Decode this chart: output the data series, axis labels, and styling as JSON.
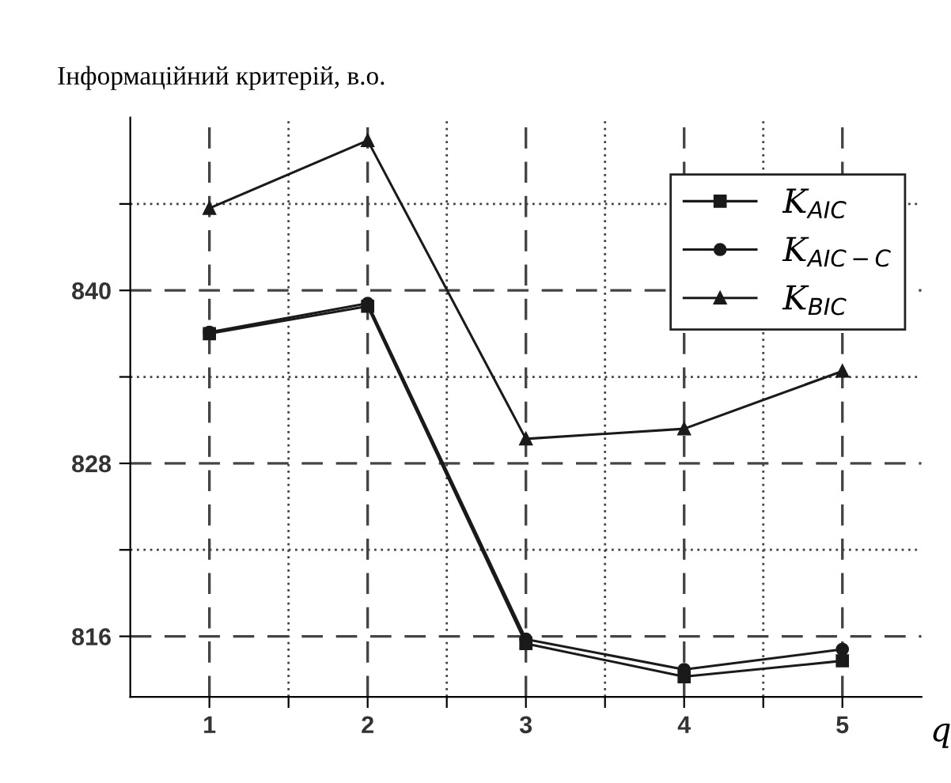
{
  "chart_data": {
    "type": "line",
    "ylabel": "Інформаційний критерій, в.о.",
    "xlabel": "q",
    "x": [
      1,
      2,
      3,
      4,
      5
    ],
    "series": [
      {
        "name": "K$_{AIC}$",
        "color": "#1a1a1a",
        "marker": "square",
        "values": [
          837.0,
          838.9,
          815.5,
          813.2,
          814.3
        ]
      },
      {
        "name": "K$_{AIC−C}$",
        "color": "#1a1a1a",
        "marker": "circle",
        "values": [
          837.1,
          839.1,
          815.8,
          813.7,
          815.1
        ]
      },
      {
        "name": "K$_{BIC}$",
        "color": "#1a1a1a",
        "marker": "triangle",
        "values": [
          845.7,
          850.4,
          829.7,
          830.4,
          834.4
        ]
      }
    ],
    "xlim": [
      0.5,
      5.5
    ],
    "ylim": [
      811.8,
      852
    ],
    "xticks": [
      1,
      {
        "value": 1.5,
        "label": null
      },
      2,
      {
        "value": 2.5,
        "label": null
      },
      3,
      {
        "value": 3.5,
        "label": null
      },
      4,
      {
        "value": 4.5,
        "label": null
      },
      5
    ],
    "yticks": [
      816,
      {
        "value": 822,
        "label": null
      },
      828,
      {
        "value": 834,
        "label": null
      },
      840,
      {
        "value": 846,
        "label": null
      }
    ],
    "grid": true,
    "legend": "top right",
    "line_style": "solid"
  }
}
